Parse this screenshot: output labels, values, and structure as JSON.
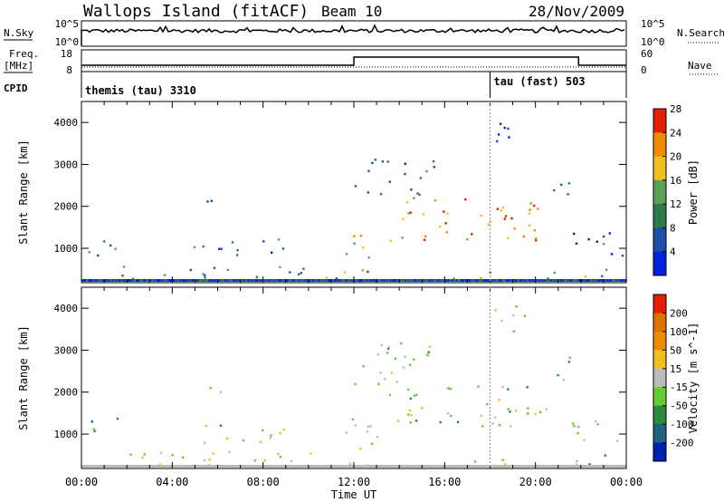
{
  "header": {
    "station": "Wallops Island (fitACF)",
    "beam": "Beam 10",
    "date": "28/Nov/2009"
  },
  "top_panels": {
    "nsky_label": "N.Sky",
    "nsky_ticks": [
      "10^5",
      "10^0"
    ],
    "nsearch_label": "N.Search",
    "nsearch_ticks": [
      "10^5",
      "10^0"
    ],
    "freq_label_1": "Freq.",
    "freq_label_2": "[MHz]",
    "freq_ticks": [
      "18",
      "8"
    ],
    "nave_label": "Nave",
    "nave_ticks": [
      "60",
      "0"
    ],
    "cpid_label": "CPID",
    "cpid_modes": [
      {
        "name": "themis (tau) 3310",
        "start_hour": 0
      },
      {
        "name": "tau (fast) 503",
        "start_hour": 18
      }
    ]
  },
  "chart_data": [
    {
      "type": "heatmap",
      "title": "",
      "xlabel": "Time UT",
      "ylabel": "Slant Range [km]",
      "xlim": [
        0,
        24
      ],
      "ylim": [
        180,
        4500
      ],
      "x_ticks": [
        "00:00",
        "04:00",
        "08:00",
        "12:00",
        "16:00",
        "20:00",
        "00:00"
      ],
      "y_ticks": [
        1000,
        2000,
        3000,
        4000
      ],
      "colorbar": {
        "label": "Power [dB]",
        "ticks": [
          "4",
          "8",
          "12",
          "16",
          "20",
          "24",
          "28"
        ],
        "colors": [
          "#0022dd",
          "#1c50a8",
          "#2e7a4a",
          "#5aa05a",
          "#f0c020",
          "#f08a00",
          "#e02000"
        ]
      },
      "scatter_regions": [
        {
          "t": [
            0.2,
            1.8
          ],
          "r": [
            800,
            1400
          ],
          "level": 2
        },
        {
          "t": [
            4.8,
            9.0
          ],
          "r": [
            800,
            1250
          ],
          "level": 2
        },
        {
          "t": [
            5.5,
            6.8
          ],
          "r": [
            1950,
            2200
          ],
          "level": 2
        },
        {
          "t": [
            1.5,
            11.8
          ],
          "r": [
            250,
            600
          ],
          "level": 3
        },
        {
          "t": [
            11.6,
            12.8
          ],
          "r": [
            600,
            1500
          ],
          "level": 4
        },
        {
          "t": [
            12.0,
            15.5
          ],
          "r": [
            2200,
            3200
          ],
          "level": 2
        },
        {
          "t": [
            13.5,
            20.5
          ],
          "r": [
            1200,
            2200
          ],
          "level": 5
        },
        {
          "t": [
            18.0,
            19.5
          ],
          "r": [
            3400,
            4100
          ],
          "level": 1
        },
        {
          "t": [
            20.5,
            21.5
          ],
          "r": [
            2200,
            2900
          ],
          "level": 2
        },
        {
          "t": [
            21.5,
            24.0
          ],
          "r": [
            800,
            1450
          ],
          "level": 2
        },
        {
          "t": [
            12.0,
            13.0
          ],
          "r": [
            250,
            550
          ],
          "level": 6
        },
        {
          "t": [
            16.0,
            19.0
          ],
          "r": [
            300,
            500
          ],
          "level": 5
        },
        {
          "t": [
            20.5,
            24.0
          ],
          "r": [
            300,
            550
          ],
          "level": 4
        }
      ]
    },
    {
      "type": "heatmap",
      "title": "",
      "xlabel": "Time UT",
      "ylabel": "Slant Range [km]",
      "xlim": [
        0,
        24
      ],
      "ylim": [
        180,
        4500
      ],
      "x_ticks": [
        "00:00",
        "04:00",
        "08:00",
        "12:00",
        "16:00",
        "20:00",
        "00:00"
      ],
      "y_ticks": [
        1000,
        2000,
        3000,
        4000
      ],
      "colorbar": {
        "label": "Velocity [m s^-1]",
        "ticks": [
          "200",
          "100",
          "50",
          "15",
          "-15",
          "-50",
          "-100",
          "-200"
        ],
        "colors": [
          "#0020b0",
          "#206080",
          "#2a8a3a",
          "#66cc33",
          "#bbbbbb",
          "#f0c020",
          "#f08a00",
          "#e07000",
          "#e02000"
        ]
      },
      "scatter_regions": [
        {
          "t": [
            0.2,
            1.8
          ],
          "r": [
            900,
            1400
          ],
          "level": 3
        },
        {
          "t": [
            4.8,
            9.0
          ],
          "r": [
            800,
            1250
          ],
          "level": 4
        },
        {
          "t": [
            5.5,
            6.8
          ],
          "r": [
            1950,
            2200
          ],
          "level": 4
        },
        {
          "t": [
            1.5,
            11.8
          ],
          "r": [
            250,
            600
          ],
          "level": 5
        },
        {
          "t": [
            11.6,
            13.0
          ],
          "r": [
            250,
            1500
          ],
          "level": 4
        },
        {
          "t": [
            12.0,
            16.0
          ],
          "r": [
            2200,
            3200
          ],
          "level": 4
        },
        {
          "t": [
            13.5,
            20.5
          ],
          "r": [
            1200,
            2200
          ],
          "level": 4
        },
        {
          "t": [
            18.0,
            19.5
          ],
          "r": [
            3400,
            4100
          ],
          "level": 4
        },
        {
          "t": [
            20.5,
            21.5
          ],
          "r": [
            2200,
            2900
          ],
          "level": 4
        },
        {
          "t": [
            21.5,
            24.0
          ],
          "r": [
            800,
            1350
          ],
          "level": 4
        },
        {
          "t": [
            21.5,
            24.0
          ],
          "r": [
            300,
            600
          ],
          "level": 3
        },
        {
          "t": [
            16.0,
            19.0
          ],
          "r": [
            300,
            500
          ],
          "level": 5
        }
      ]
    }
  ]
}
